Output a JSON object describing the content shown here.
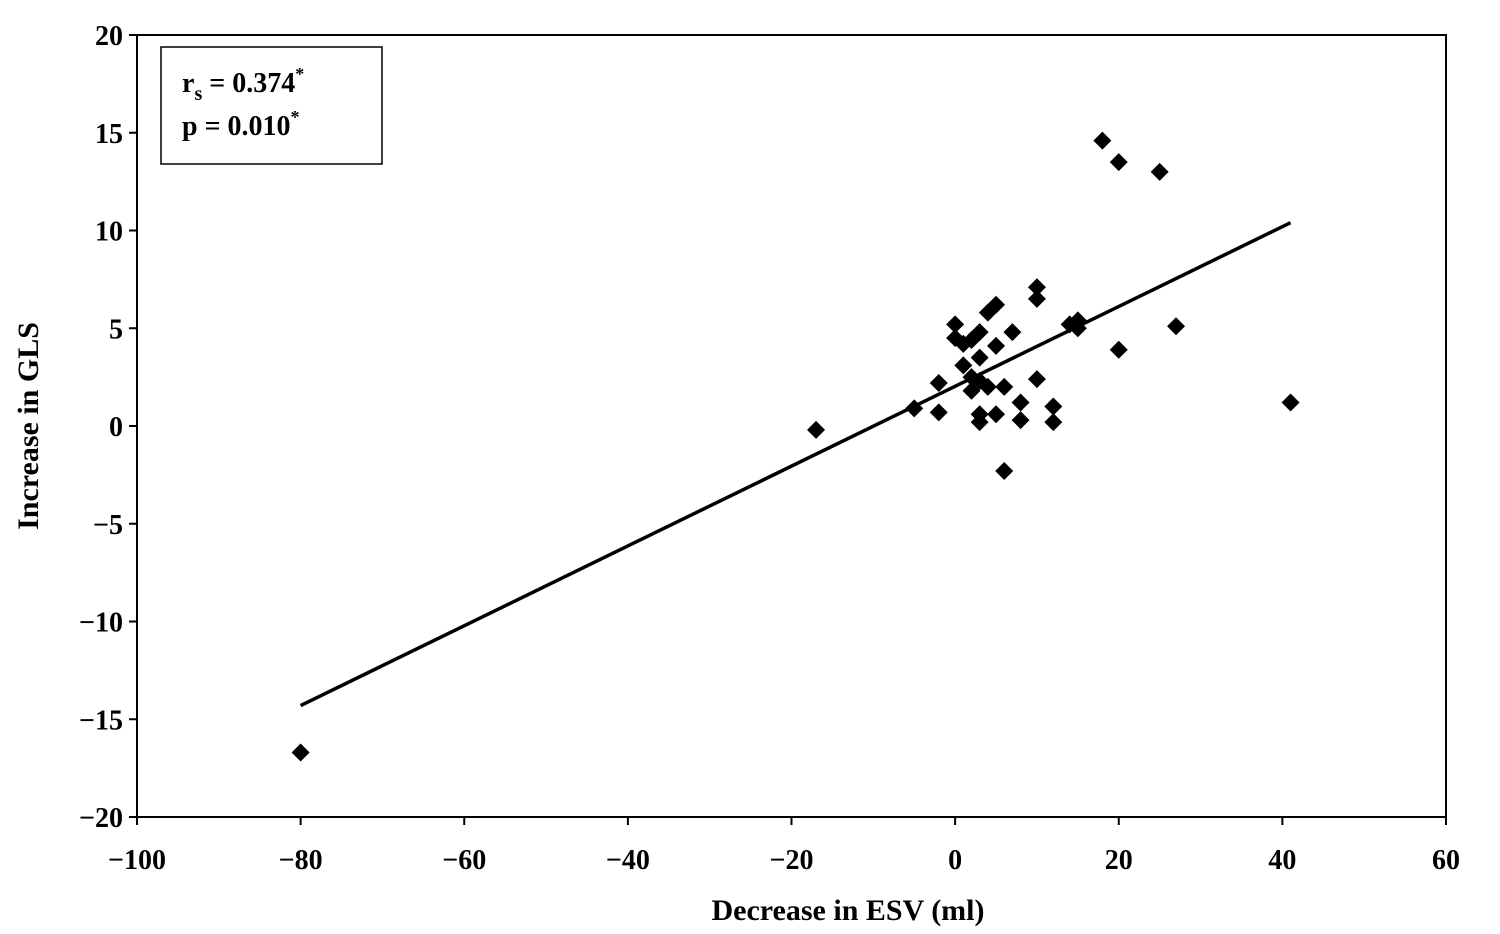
{
  "chart_data": {
    "type": "scatter",
    "xlabel": "Decrease in ESV (ml)",
    "ylabel": "Increase in GLS",
    "xlim": [
      -100,
      60
    ],
    "ylim": [
      -20,
      20
    ],
    "xticks": [
      -100,
      -80,
      -60,
      -40,
      -20,
      0,
      20,
      40,
      60
    ],
    "yticks": [
      -20,
      -15,
      -10,
      -5,
      0,
      5,
      10,
      15,
      20
    ],
    "grid": false,
    "annotation": {
      "rs_label": "r",
      "rs_sub": "s",
      "rs_value": " = 0.374",
      "p_text": "p = 0.010",
      "star": "*"
    },
    "trendline": {
      "x": [
        -80,
        41
      ],
      "y": [
        -14.3,
        10.4
      ]
    },
    "marker_color": "#000000",
    "points": [
      [
        -80,
        -16.7
      ],
      [
        -17,
        -0.2
      ],
      [
        -5,
        0.9
      ],
      [
        -2,
        2.2
      ],
      [
        -2,
        0.7
      ],
      [
        0,
        5.2
      ],
      [
        0,
        4.5
      ],
      [
        1,
        4.2
      ],
      [
        1,
        3.1
      ],
      [
        2,
        4.4
      ],
      [
        2,
        1.8
      ],
      [
        2,
        2.5
      ],
      [
        3,
        4.8
      ],
      [
        3,
        3.5
      ],
      [
        3,
        2.3
      ],
      [
        3,
        0.6
      ],
      [
        3,
        0.2
      ],
      [
        4,
        2.0
      ],
      [
        4,
        5.8
      ],
      [
        5,
        6.2
      ],
      [
        5,
        4.1
      ],
      [
        5,
        0.6
      ],
      [
        6,
        2.0
      ],
      [
        6,
        -2.3
      ],
      [
        7,
        4.8
      ],
      [
        8,
        1.2
      ],
      [
        8,
        0.3
      ],
      [
        10,
        7.1
      ],
      [
        10,
        6.5
      ],
      [
        10,
        2.4
      ],
      [
        12,
        1.0
      ],
      [
        12,
        0.2
      ],
      [
        14,
        5.2
      ],
      [
        15,
        5.4
      ],
      [
        15,
        5.0
      ],
      [
        18,
        14.6
      ],
      [
        20,
        13.5
      ],
      [
        20,
        3.9
      ],
      [
        25,
        13.0
      ],
      [
        27,
        5.1
      ],
      [
        41,
        1.2
      ]
    ]
  }
}
